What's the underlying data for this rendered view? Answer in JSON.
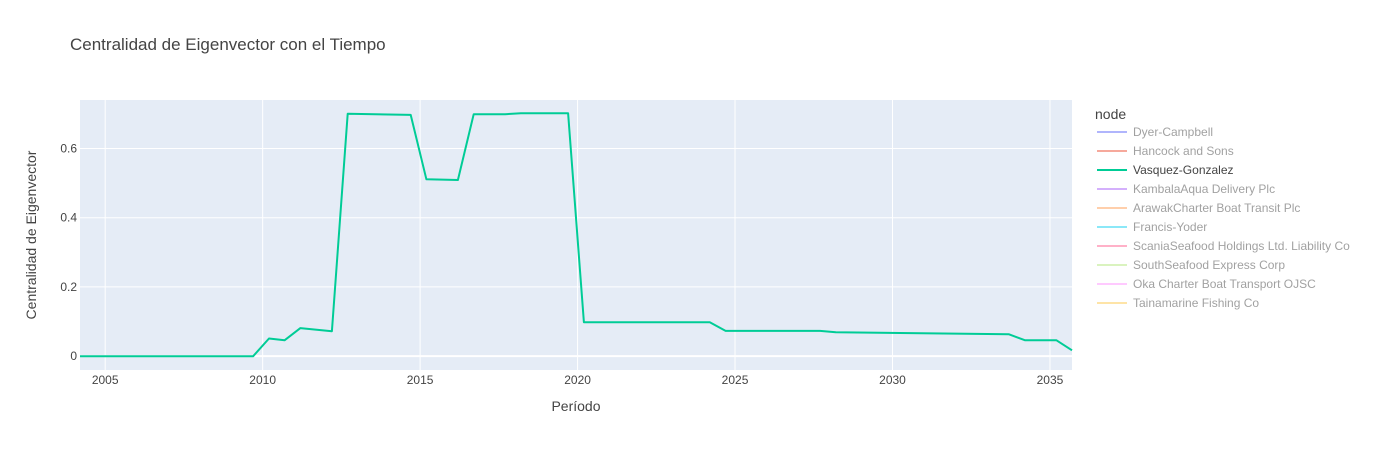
{
  "chart_data": {
    "type": "line",
    "title": "Centralidad de Eigenvector con el Tiempo",
    "xlabel": "Período",
    "ylabel": "Centralidad de Eigenvector",
    "xlim": [
      2004.2,
      2035.7
    ],
    "ylim": [
      -0.04,
      0.74
    ],
    "x_ticks": [
      2005,
      2010,
      2015,
      2020,
      2025,
      2030,
      2035
    ],
    "y_ticks": [
      0,
      0.2,
      0.4,
      0.6
    ],
    "y_tick_labels": [
      "0",
      "0.2",
      "0.4",
      "0.6"
    ],
    "grid": true,
    "background": "#e5ecf6",
    "legend": {
      "title": "node",
      "placement": "right",
      "items": [
        {
          "name": "Dyer-Campbell",
          "color": "#636efa",
          "active": false
        },
        {
          "name": "Hancock and Sons",
          "color": "#ef553b",
          "active": false
        },
        {
          "name": "Vasquez-Gonzalez",
          "color": "#00cc96",
          "active": true
        },
        {
          "name": "KambalaAqua Delivery Plc",
          "color": "#ab63fa",
          "active": false
        },
        {
          "name": "ArawakCharter Boat Transit Plc",
          "color": "#ffa15a",
          "active": false
        },
        {
          "name": "Francis-Yoder",
          "color": "#19d3f3",
          "active": false
        },
        {
          "name": "ScaniaSeafood Holdings Ltd. Liability Co",
          "color": "#ff6692",
          "active": false
        },
        {
          "name": "SouthSeafood Express Corp",
          "color": "#b6e880",
          "active": false
        },
        {
          "name": "Oka Charter Boat Transport OJSC",
          "color": "#ff97ff",
          "active": false
        },
        {
          "name": "Tainamarine Fishing Co",
          "color": "#fecb52",
          "active": false
        }
      ]
    },
    "series": [
      {
        "name": "Vasquez-Gonzalez",
        "color": "#00cc96",
        "x": [
          2004.2,
          2009.7,
          2010.2,
          2010.7,
          2011.2,
          2012.2,
          2012.7,
          2014.7,
          2015.2,
          2016.2,
          2016.7,
          2017.7,
          2018.2,
          2019.7,
          2020.2,
          2024.2,
          2024.7,
          2027.7,
          2028.2,
          2033.7,
          2034.2,
          2035.2,
          2035.7
        ],
        "y": [
          0.0,
          0.0,
          0.051,
          0.046,
          0.081,
          0.072,
          0.7,
          0.697,
          0.511,
          0.509,
          0.699,
          0.699,
          0.702,
          0.702,
          0.098,
          0.098,
          0.073,
          0.073,
          0.069,
          0.063,
          0.046,
          0.046,
          0.017
        ]
      }
    ]
  }
}
